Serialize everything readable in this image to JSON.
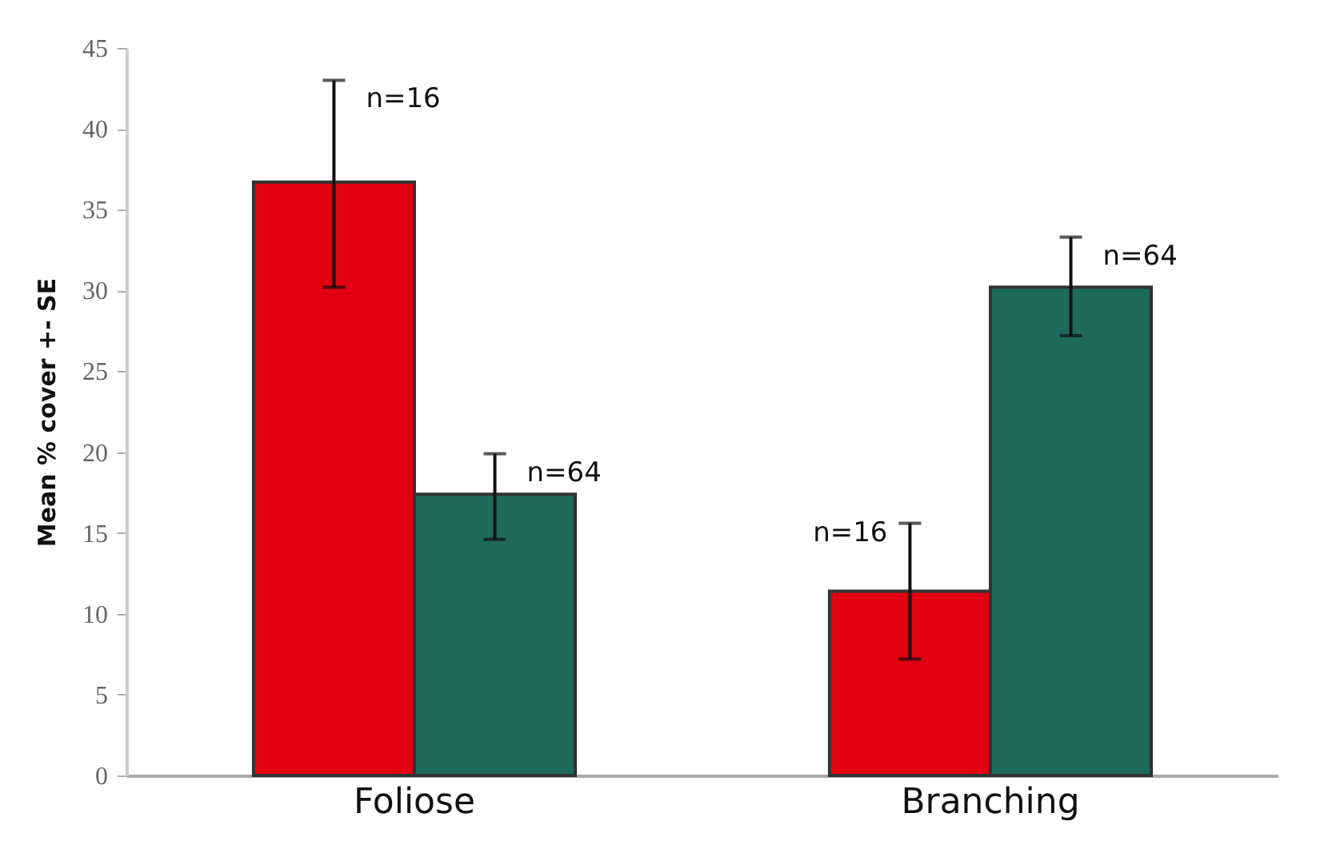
{
  "chart_data": {
    "type": "bar",
    "ylabel": "Mean % cover +- SE",
    "categories": [
      "Foliose",
      "Branching"
    ],
    "ylim": [
      0,
      45
    ],
    "yticks": [
      0,
      5,
      10,
      15,
      20,
      25,
      30,
      35,
      40,
      45
    ],
    "grid": false,
    "legend": false,
    "series": [
      {
        "color": "#e00012",
        "values": [
          36.7,
          11.4
        ],
        "errors": [
          [
            30.2,
            43.0
          ],
          [
            7.2,
            15.6
          ]
        ]
      },
      {
        "color": "#1e6b5c",
        "values": [
          17.4,
          30.2
        ],
        "errors": [
          [
            14.6,
            19.9
          ],
          [
            27.2,
            33.3
          ]
        ]
      }
    ],
    "annotations": [
      "n=16",
      "n=64",
      "n=16",
      "n=64"
    ]
  }
}
